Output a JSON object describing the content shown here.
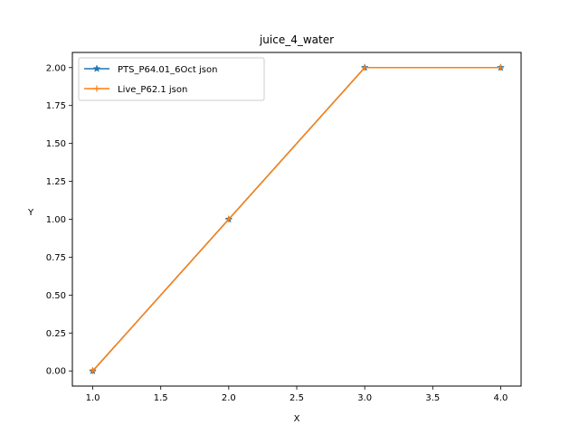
{
  "chart_data": {
    "type": "line",
    "title": "juice_4_water",
    "xlabel": "X",
    "ylabel": "Y",
    "xlim": [
      0.85,
      4.15
    ],
    "ylim": [
      -0.1,
      2.1
    ],
    "xticks": [
      1.0,
      1.5,
      2.0,
      2.5,
      3.0,
      3.5,
      4.0
    ],
    "xtick_labels": [
      "1.0",
      "1.5",
      "2.0",
      "2.5",
      "3.0",
      "3.5",
      "4.0"
    ],
    "yticks": [
      0.0,
      0.25,
      0.5,
      0.75,
      1.0,
      1.25,
      1.5,
      1.75,
      2.0
    ],
    "ytick_labels": [
      "0.00",
      "0.25",
      "0.50",
      "0.75",
      "1.00",
      "1.25",
      "1.50",
      "1.75",
      "2.00"
    ],
    "grid": false,
    "legend_position": "top-left",
    "series": [
      {
        "name": "PTS_P64.01_6Oct json",
        "x": [
          1,
          2,
          3,
          4
        ],
        "y": [
          0,
          1,
          2,
          2
        ],
        "color": "#1f77b4",
        "marker": "star"
      },
      {
        "name": "Live_P62.1 json",
        "x": [
          1,
          2,
          3,
          4
        ],
        "y": [
          0,
          1,
          2,
          2
        ],
        "color": "#ff7f0e",
        "marker": "plus"
      }
    ]
  }
}
